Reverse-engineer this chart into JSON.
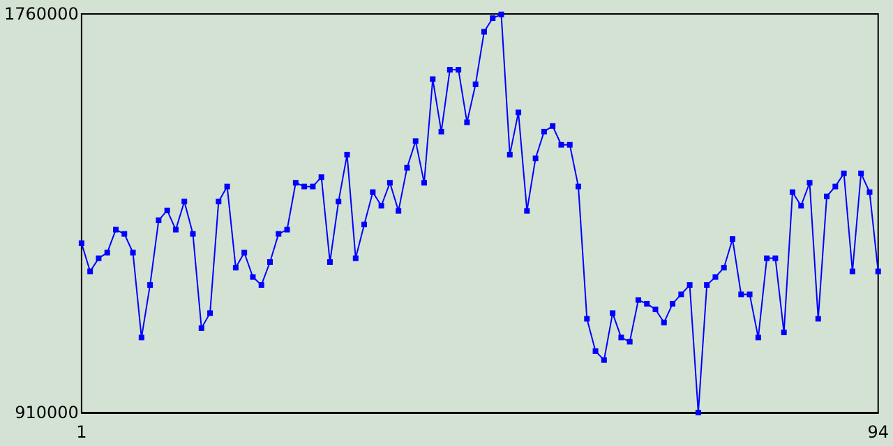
{
  "chart_data": {
    "type": "line",
    "x": [
      1,
      2,
      3,
      4,
      5,
      6,
      7,
      8,
      9,
      10,
      11,
      12,
      13,
      14,
      15,
      16,
      17,
      18,
      19,
      20,
      21,
      22,
      23,
      24,
      25,
      26,
      27,
      28,
      29,
      30,
      31,
      32,
      33,
      34,
      35,
      36,
      37,
      38,
      39,
      40,
      41,
      42,
      43,
      44,
      45,
      46,
      47,
      48,
      49,
      50,
      51,
      52,
      53,
      54,
      55,
      56,
      57,
      58,
      59,
      60,
      61,
      62,
      63,
      64,
      65,
      66,
      67,
      68,
      69,
      70,
      71,
      72,
      73,
      74,
      75,
      76,
      77,
      78,
      79,
      80,
      81,
      82,
      83,
      84,
      85,
      86,
      87,
      88,
      89,
      90,
      91,
      92,
      93,
      94
    ],
    "series": [
      {
        "color": "#0000ff",
        "values": [
          1271000,
          1211000,
          1239000,
          1251000,
          1300000,
          1291000,
          1251000,
          1070000,
          1182000,
          1320000,
          1341000,
          1300000,
          1360000,
          1291000,
          1090000,
          1122000,
          1360000,
          1392000,
          1219000,
          1251000,
          1199000,
          1182000,
          1231000,
          1291000,
          1300000,
          1400000,
          1392000,
          1392000,
          1412000,
          1231000,
          1360000,
          1460000,
          1239000,
          1311000,
          1380000,
          1351000,
          1400000,
          1340000,
          1432000,
          1489000,
          1400000,
          1621000,
          1509000,
          1641000,
          1641000,
          1529000,
          1610000,
          1722000,
          1751000,
          1759000,
          1460000,
          1550000,
          1340000,
          1452000,
          1509000,
          1521000,
          1481000,
          1481000,
          1392000,
          1110000,
          1041000,
          1022000,
          1122000,
          1070000,
          1061000,
          1150000,
          1142000,
          1130000,
          1102000,
          1142000,
          1162000,
          1182000,
          910000,
          1182000,
          1199000,
          1219000,
          1280000,
          1162000,
          1162000,
          1070000,
          1239000,
          1239000,
          1081000,
          1380000,
          1351000,
          1400000,
          1110000,
          1371000,
          1392000,
          1420000,
          1211000,
          1420000,
          1380000,
          1211000
        ]
      }
    ],
    "xlim": [
      1,
      94
    ],
    "xticks": [
      1,
      94
    ],
    "ylim": [
      910000,
      1760000
    ],
    "yticks": [
      910000,
      1760000
    ],
    "grid": false,
    "marker": "square",
    "line_style": "solid"
  }
}
